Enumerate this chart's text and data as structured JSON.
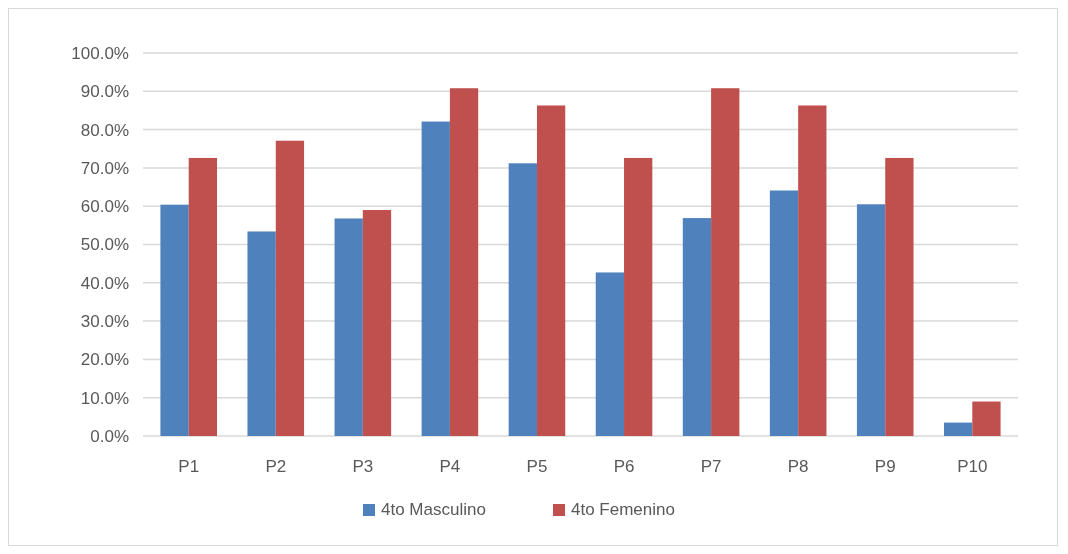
{
  "chart_data": {
    "type": "bar",
    "categories": [
      "P1",
      "P2",
      "P3",
      "P4",
      "P5",
      "P6",
      "P7",
      "P8",
      "P9",
      "P10"
    ],
    "series": [
      {
        "name": "4to Masculino",
        "color": "#4f81bd",
        "values": [
          60.4,
          53.4,
          56.8,
          82.1,
          71.2,
          42.7,
          56.9,
          64.1,
          60.5,
          3.5
        ]
      },
      {
        "name": "4to Femenino",
        "color": "#c0504d",
        "values": [
          72.6,
          77.1,
          59.0,
          90.8,
          86.3,
          72.6,
          90.8,
          86.3,
          72.6,
          9.0
        ]
      }
    ],
    "ylim": [
      0,
      100
    ],
    "yticks": [
      {
        "value": 0,
        "label": "0.0%"
      },
      {
        "value": 10,
        "label": "10.0%"
      },
      {
        "value": 20,
        "label": "20.0%"
      },
      {
        "value": 30,
        "label": "30.0%"
      },
      {
        "value": 40,
        "label": "40.0%"
      },
      {
        "value": 50,
        "label": "50.0%"
      },
      {
        "value": 60,
        "label": "60.0%"
      },
      {
        "value": 70,
        "label": "70.0%"
      },
      {
        "value": 80,
        "label": "80.0%"
      },
      {
        "value": 90,
        "label": "90.0%"
      },
      {
        "value": 100,
        "label": "100.0%"
      }
    ],
    "grid": "y",
    "legend": "bottom"
  }
}
